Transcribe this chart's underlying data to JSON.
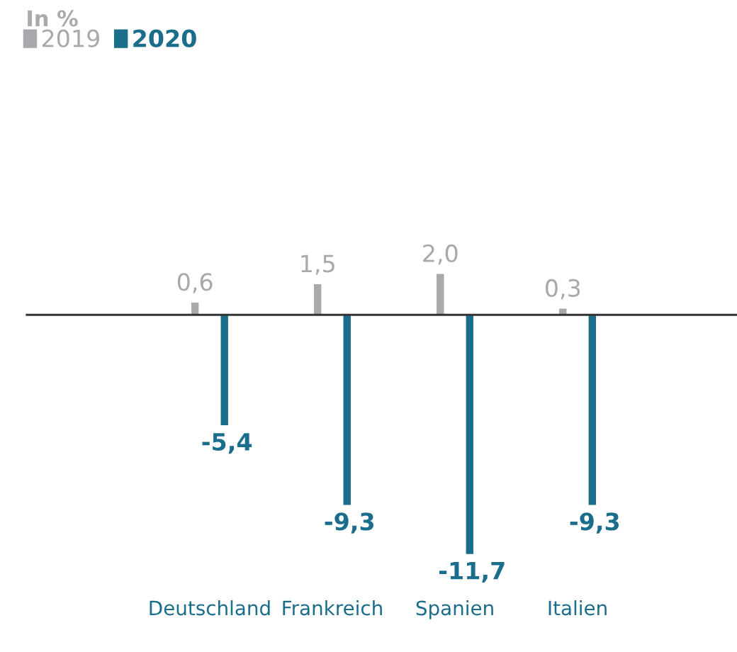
{
  "chart_data": {
    "type": "bar",
    "title": "In %",
    "categories": [
      "Deutschland",
      "Frankreich",
      "Spanien",
      "Italien"
    ],
    "series": [
      {
        "name": "2019",
        "color": "#a7a9ac",
        "values": [
          0.6,
          1.5,
          2.0,
          0.3
        ],
        "value_labels": [
          "0,6",
          "1,5",
          "2,0",
          "0,3"
        ]
      },
      {
        "name": "2020",
        "color": "#1b6d8c",
        "values": [
          -5.4,
          -9.3,
          -11.7,
          -9.3
        ],
        "value_labels": [
          "-5,4",
          "-9,3",
          "-11,7",
          "-9,3"
        ]
      }
    ],
    "legend": "top left",
    "grid": false
  }
}
